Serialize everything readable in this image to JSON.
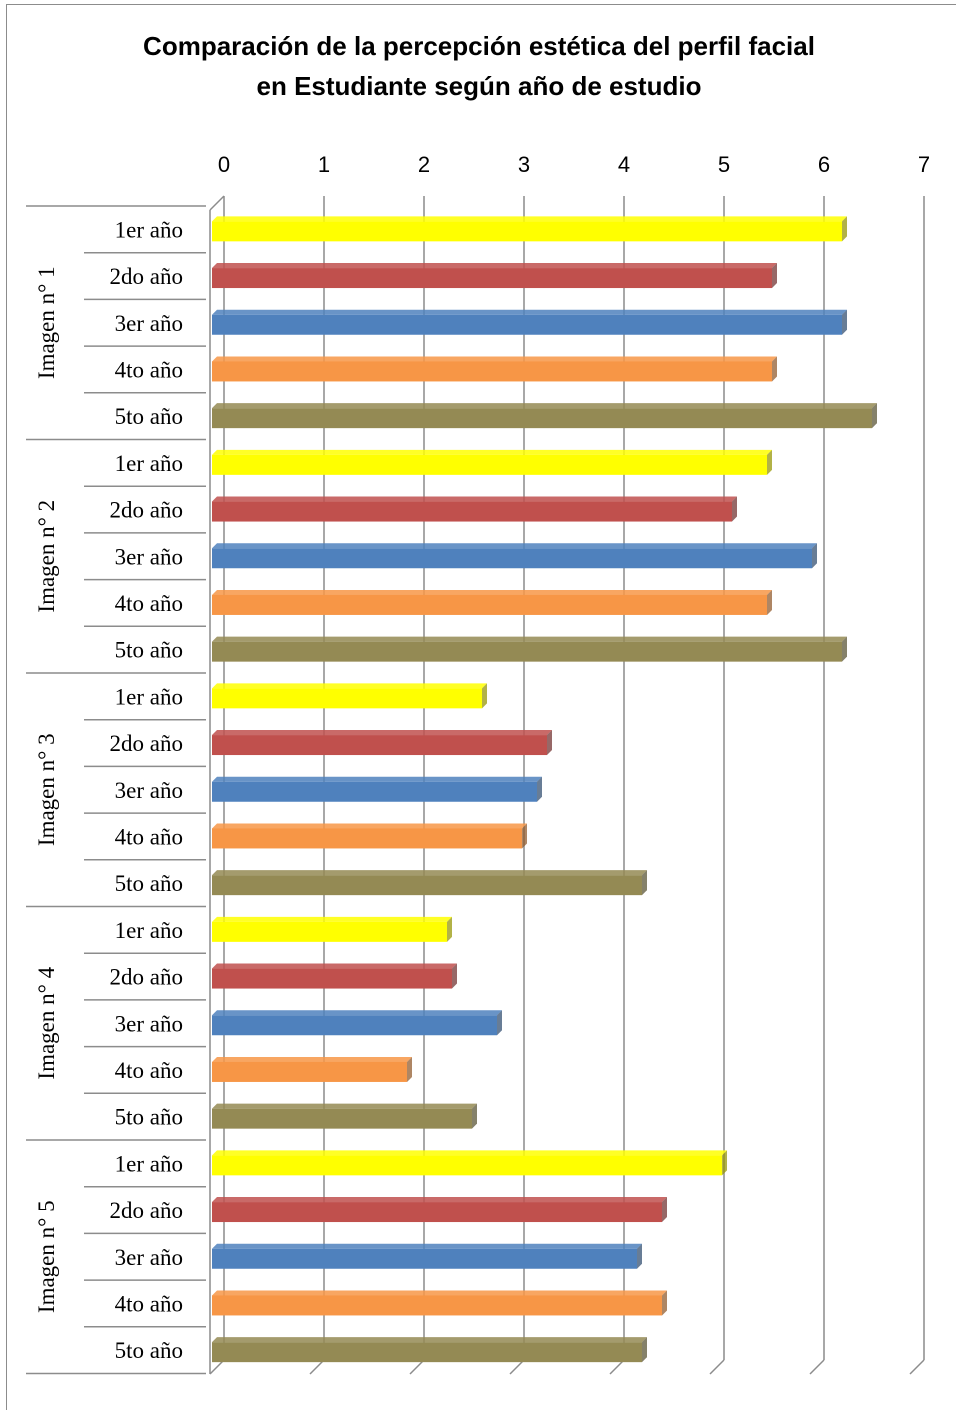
{
  "chart_data": {
    "type": "bar",
    "orientation": "horizontal",
    "title_lines": [
      "Comparación de  la percepción estética del perfil facial",
      "en Estudiante según año de estudio"
    ],
    "xlim": [
      0,
      7
    ],
    "xticks": [
      "0",
      "1",
      "2",
      "3",
      "4",
      "5",
      "6",
      "7"
    ],
    "grid": true,
    "legend": "none",
    "groups": [
      {
        "label": "Imagen n° 1",
        "categories": [
          "1er año",
          "2do año",
          "3er año",
          "4to año",
          "5to año"
        ],
        "values": [
          6.3,
          5.6,
          6.3,
          5.6,
          6.6
        ]
      },
      {
        "label": "Imagen n° 2",
        "categories": [
          "1er año",
          "2do año",
          "3er año",
          "4to año",
          "5to año"
        ],
        "values": [
          5.55,
          5.2,
          6.0,
          5.55,
          6.3
        ]
      },
      {
        "label": "Imagen n° 3",
        "categories": [
          "1er año",
          "2do año",
          "3er año",
          "4to año",
          "5to año"
        ],
        "values": [
          2.7,
          3.35,
          3.25,
          3.1,
          4.3
        ]
      },
      {
        "label": "Imagen n° 4",
        "categories": [
          "1er año",
          "2do año",
          "3er año",
          "4to año",
          "5to año"
        ],
        "values": [
          2.35,
          2.4,
          2.85,
          1.95,
          2.6
        ]
      },
      {
        "label": "Imagen n° 5",
        "categories": [
          "1er año",
          "2do año",
          "3er año",
          "4to año",
          "5to año"
        ],
        "values": [
          5.1,
          4.5,
          4.25,
          4.5,
          4.3
        ]
      }
    ],
    "bar_colors": [
      "#FFFF00",
      "#C0504D",
      "#4F81BD",
      "#F79646",
      "#948A54"
    ]
  }
}
